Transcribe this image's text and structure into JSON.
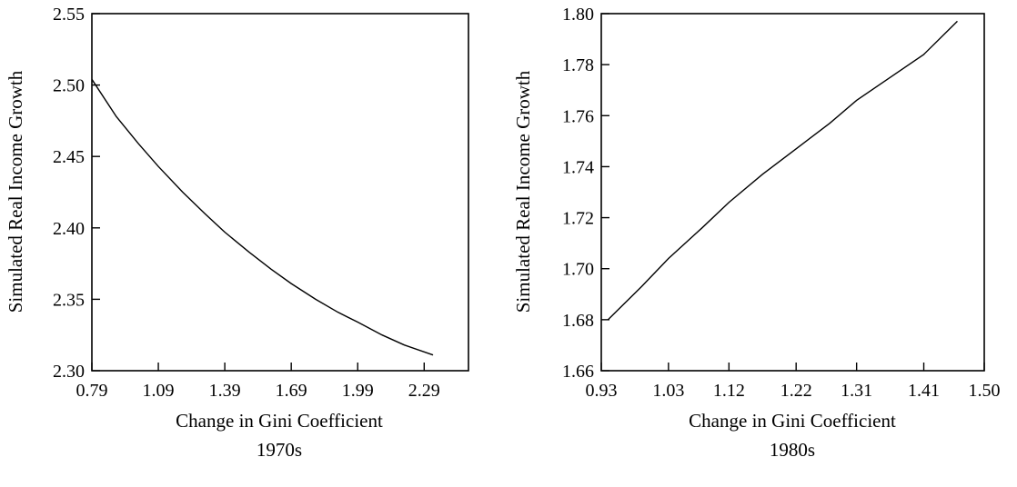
{
  "chart_data": [
    {
      "type": "line",
      "xlabel": "Change in Gini Coefficient",
      "subtitle": "1970s",
      "ylabel": "Simulated Real Income Growth",
      "xlim": [
        0.79,
        2.49
      ],
      "ylim": [
        2.3,
        2.55
      ],
      "xticks": [
        "0.79",
        "1.09",
        "1.39",
        "1.69",
        "1.99",
        "2.29"
      ],
      "yticks": [
        "2.30",
        "2.35",
        "2.40",
        "2.45",
        "2.50",
        "2.55"
      ],
      "grid": false,
      "series": [
        {
          "x": [
            0.79,
            0.9,
            1.0,
            1.09,
            1.2,
            1.3,
            1.39,
            1.5,
            1.6,
            1.69,
            1.8,
            1.9,
            1.99,
            2.1,
            2.2,
            2.33
          ],
          "y": [
            2.504,
            2.478,
            2.459,
            2.443,
            2.425,
            2.41,
            2.397,
            2.383,
            2.371,
            2.361,
            2.35,
            2.341,
            2.334,
            2.325,
            2.318,
            2.311
          ]
        }
      ]
    },
    {
      "type": "line",
      "xlabel": "Change in Gini Coefficient",
      "subtitle": "1980s",
      "ylabel": "Simulated Real Income Growth",
      "xlim": [
        0.93,
        1.5
      ],
      "ylim": [
        1.66,
        1.8
      ],
      "xticks": [
        "0.93",
        "1.03",
        "1.12",
        "1.22",
        "1.31",
        "1.41",
        "1.50"
      ],
      "yticks": [
        "1.66",
        "1.68",
        "1.70",
        "1.72",
        "1.74",
        "1.76",
        "1.78",
        "1.80"
      ],
      "grid": false,
      "series": [
        {
          "x": [
            0.94,
            0.99,
            1.03,
            1.08,
            1.12,
            1.17,
            1.22,
            1.27,
            1.31,
            1.36,
            1.41,
            1.46
          ],
          "y": [
            1.68,
            1.693,
            1.704,
            1.716,
            1.726,
            1.737,
            1.747,
            1.757,
            1.766,
            1.775,
            1.784,
            1.797
          ]
        }
      ]
    }
  ]
}
